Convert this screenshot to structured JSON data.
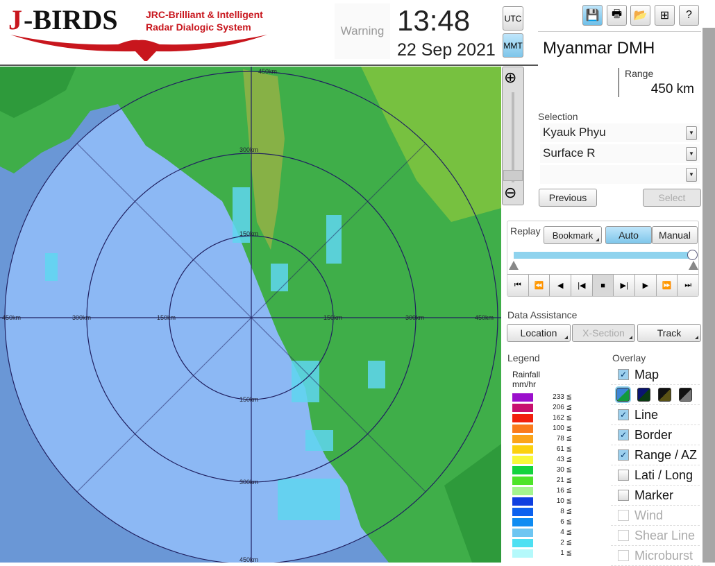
{
  "header": {
    "logo_text": "J-BIRDS",
    "logo_subtitle_1": "JRC-Brilliant & Intelligent",
    "logo_subtitle_2": "Radar Dialogic System",
    "warning": "Warning",
    "time": "13:48",
    "date": "22 Sep 2021",
    "utc": "UTC",
    "mmt": "MMT",
    "selected_timezone": "MMT"
  },
  "toolbar": {
    "icons": [
      "save-icon",
      "print-icon",
      "folder-open-icon",
      "add-window-icon",
      "help-icon"
    ]
  },
  "site": {
    "name": "Myanmar DMH",
    "range_label": "Range",
    "range_value": "450 km"
  },
  "selection": {
    "label": "Selection",
    "radar": "Kyauk Phyu",
    "product": "Surface R",
    "third": "",
    "previous": "Previous",
    "select": "Select"
  },
  "replay": {
    "label": "Replay",
    "bookmark": "Bookmark",
    "auto": "Auto",
    "manual": "Manual",
    "mode": "Auto",
    "slider_position": 1.0,
    "controls": [
      "first",
      "fast-back",
      "back",
      "step-back",
      "stop",
      "step-forward",
      "play",
      "fast-forward",
      "last"
    ]
  },
  "assist": {
    "label": "Data Assistance",
    "location": "Location",
    "xsection": "X-Section",
    "track": "Track"
  },
  "legend": {
    "label": "Legend",
    "title1": "Rainfall",
    "title2": "mm/hr",
    "items": [
      {
        "v": "233 ≦",
        "c": "#9b0fcc"
      },
      {
        "v": "206 ≦",
        "c": "#c8106e"
      },
      {
        "v": "162 ≦",
        "c": "#f2200e"
      },
      {
        "v": "100 ≦",
        "c": "#fa7b1c"
      },
      {
        "v": "78 ≦",
        "c": "#fba41a"
      },
      {
        "v": "61 ≦",
        "c": "#fcd10e"
      },
      {
        "v": "43 ≦",
        "c": "#f9f93a"
      },
      {
        "v": "30 ≦",
        "c": "#14d33e"
      },
      {
        "v": "21 ≦",
        "c": "#4ee42a"
      },
      {
        "v": "16 ≦",
        "c": "#a4f58e"
      },
      {
        "v": "10 ≦",
        "c": "#0f3fe0"
      },
      {
        "v": "8 ≦",
        "c": "#0d62ef"
      },
      {
        "v": "6 ≦",
        "c": "#0f8cf2"
      },
      {
        "v": "4 ≦",
        "c": "#6ec6f2"
      },
      {
        "v": "2 ≦",
        "c": "#4ee0f2"
      },
      {
        "v": "1 ≦",
        "c": "#b4f9fb"
      }
    ]
  },
  "overlay": {
    "label": "Overlay",
    "map_styles": [
      [
        "#3d86d8",
        "#129a3c"
      ],
      [
        "#0a1470",
        "#0a3a12"
      ],
      [
        "#111",
        "#5a5215"
      ],
      [
        "#111",
        "#777"
      ]
    ],
    "items": [
      {
        "label": "Map",
        "checked": true,
        "enabled": true
      },
      {
        "label": "Line",
        "checked": true,
        "enabled": true
      },
      {
        "label": "Border",
        "checked": true,
        "enabled": true
      },
      {
        "label": "Range / AZ",
        "checked": true,
        "enabled": true
      },
      {
        "label": "Lati / Long",
        "checked": false,
        "enabled": true
      },
      {
        "label": "Marker",
        "checked": false,
        "enabled": true
      },
      {
        "label": "Wind",
        "checked": false,
        "enabled": false
      },
      {
        "label": "Shear Line",
        "checked": false,
        "enabled": false
      },
      {
        "label": "Microburst",
        "checked": false,
        "enabled": false
      }
    ]
  },
  "map": {
    "range_rings_km": [
      150,
      300,
      450
    ],
    "ring_labels": {
      "top": "450km",
      "r300_top": "300km",
      "r150_top": "150km",
      "left450": "450km",
      "left300": "300km",
      "left150": "150km",
      "right150": "150km",
      "right300": "300km",
      "right450": "450km",
      "bot150": "150km",
      "bot300": "300km",
      "bot450": "450km"
    },
    "sea_color": "#8cb8f4",
    "land_color": "#3fae49"
  }
}
